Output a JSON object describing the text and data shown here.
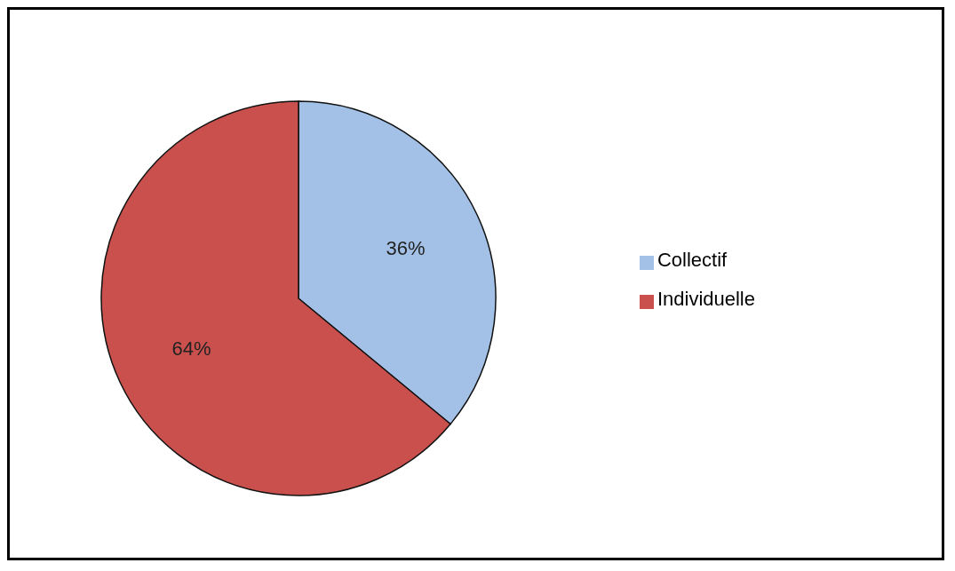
{
  "chart_data": {
    "type": "pie",
    "categories": [
      "Collectif",
      "Individuelle"
    ],
    "values": [
      36,
      64
    ],
    "colors": [
      "#a3c0e6",
      "#c9504d"
    ],
    "value_labels": [
      "36%",
      "64%"
    ],
    "legend": "right"
  }
}
